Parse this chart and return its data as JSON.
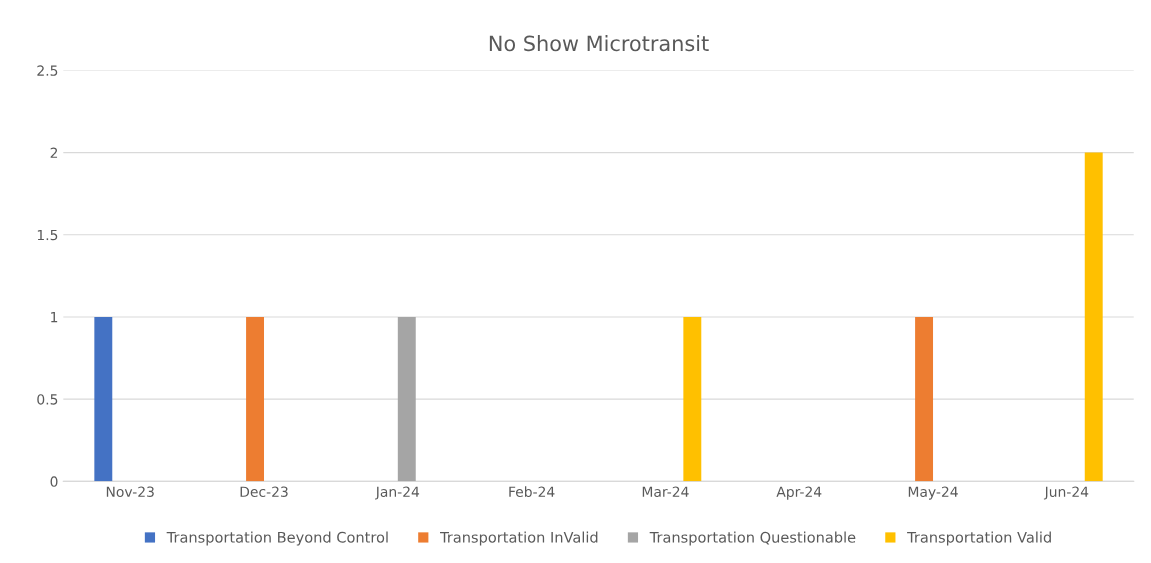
{
  "chart_data": {
    "type": "bar",
    "title": "No Show Microtransit",
    "categories": [
      "Nov-23",
      "Dec-23",
      "Jan-24",
      "Feb-24",
      "Mar-24",
      "Apr-24",
      "May-24",
      "Jun-24"
    ],
    "series": [
      {
        "name": "Transportation Beyond Control",
        "color": "#4472c4",
        "values": [
          1,
          0,
          0,
          0,
          0,
          0,
          0,
          0
        ]
      },
      {
        "name": "Transportation InValid",
        "color": "#ed7d31",
        "values": [
          0,
          1,
          0,
          0,
          0,
          0,
          1,
          0
        ]
      },
      {
        "name": "Transportation Questionable",
        "color": "#a5a5a5",
        "values": [
          0,
          0,
          1,
          0,
          0,
          0,
          0,
          0
        ]
      },
      {
        "name": "Transportation Valid",
        "color": "#ffc000",
        "values": [
          0,
          0,
          0,
          0,
          1,
          0,
          0,
          2
        ]
      }
    ],
    "ylim": [
      0,
      2.5
    ],
    "yticks": [
      0,
      0.5,
      1,
      1.5,
      2,
      2.5
    ],
    "grid": "y",
    "legend": "bottom"
  }
}
